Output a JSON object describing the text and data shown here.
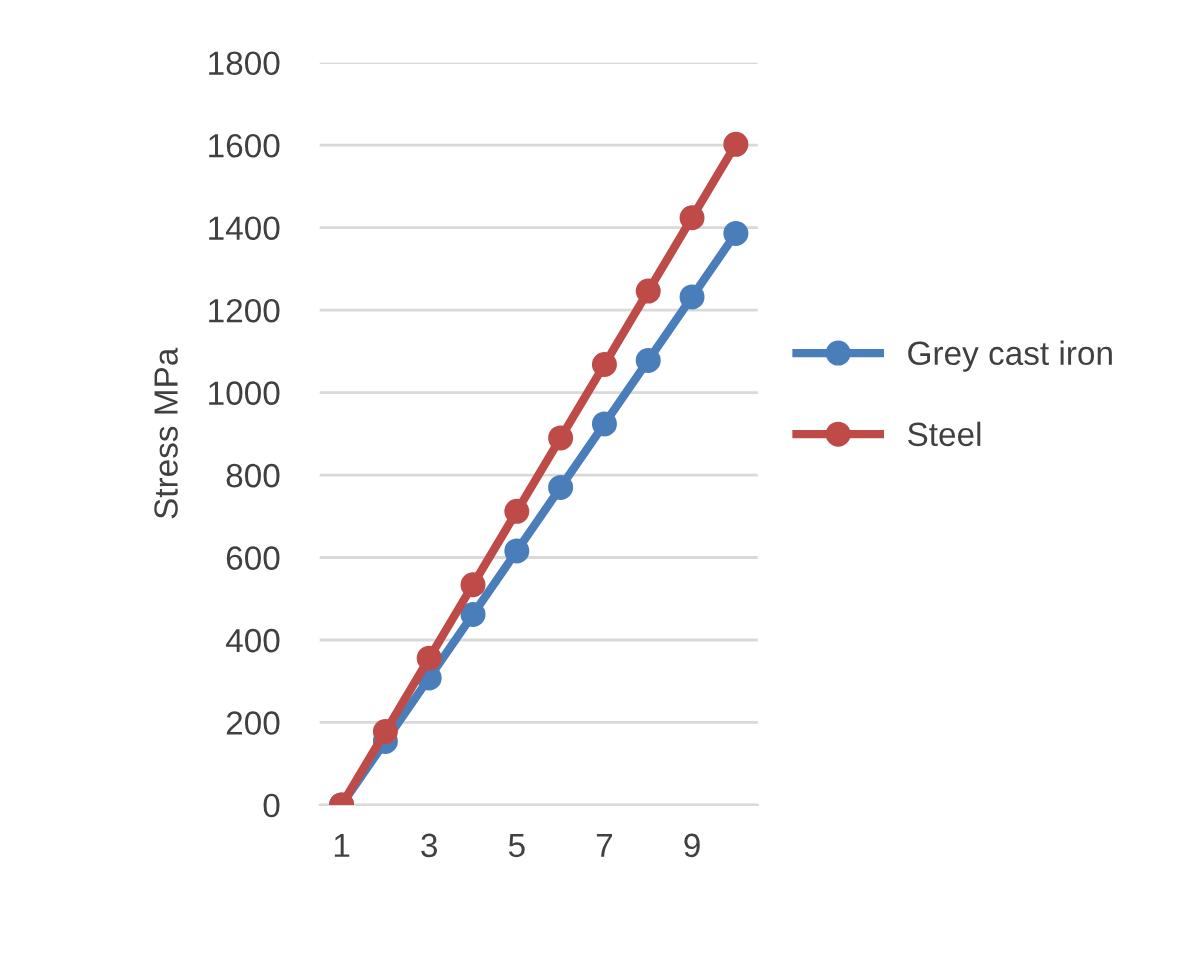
{
  "chart_data": {
    "type": "line",
    "ylabel": "Stress MPa",
    "categories": [
      "1",
      null,
      "3",
      null,
      "5",
      null,
      "7",
      null,
      "9",
      null
    ],
    "series": [
      {
        "name": "Grey cast iron",
        "color": "#4a7ebb",
        "values": [
          0,
          154,
          308,
          462,
          616,
          770,
          924,
          1078,
          1232,
          1386
        ]
      },
      {
        "name": "Steel",
        "color": "#be4b48",
        "values": [
          0,
          178,
          356,
          534,
          712,
          890,
          1068,
          1246,
          1424,
          1602
        ]
      }
    ],
    "ylim": [
      0,
      1800
    ],
    "yticks": [
      0,
      200,
      400,
      600,
      800,
      1000,
      1200,
      1400,
      1600,
      1800
    ],
    "grid": "y",
    "legend": "right",
    "marker": "circle",
    "line_style": "solid"
  }
}
